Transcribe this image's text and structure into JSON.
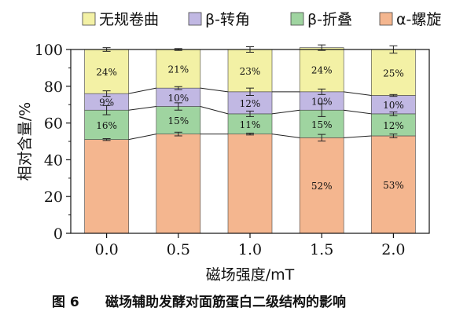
{
  "chart_data": {
    "type": "bar",
    "stacked": true,
    "categories": [
      "0.0",
      "0.5",
      "1.0",
      "1.5",
      "2.0"
    ],
    "series": [
      {
        "name": "α-螺旋",
        "color": "#f4b68f",
        "values": [
          51,
          54,
          54,
          52,
          53
        ],
        "labels": [
          "",
          "",
          "",
          "52%",
          "53%"
        ],
        "error": [
          0.5,
          1,
          0.5,
          1.8,
          1
        ]
      },
      {
        "name": "β-折叠",
        "color": "#9fd4a0",
        "values": [
          16,
          15,
          11,
          15,
          12
        ],
        "labels": [
          "16%",
          "15%",
          "11%",
          "15%",
          "12%"
        ],
        "error": [
          2.5,
          2,
          1.5,
          3.5,
          1
        ]
      },
      {
        "name": "β-转角",
        "color": "#c1b8e3",
        "values": [
          9,
          10,
          12,
          10,
          10
        ],
        "labels": [
          "9%",
          "10%",
          "12%",
          "10%",
          "10%"
        ],
        "error": [
          1.5,
          0.8,
          2,
          1.5,
          0.5
        ]
      },
      {
        "name": "无规卷曲",
        "color": "#f3f1a5",
        "values": [
          24,
          21,
          23,
          24,
          25
        ],
        "labels": [
          "24%",
          "21%",
          "23%",
          "24%",
          "25%"
        ],
        "error": [
          1,
          0.5,
          1.5,
          1.5,
          2
        ]
      }
    ],
    "legend_order": [
      "无规卷曲",
      "β-转角",
      "β-折叠",
      "α-螺旋"
    ],
    "legend_position": "top",
    "xlabel": "磁场强度/mT",
    "ylabel": "相对含量/%",
    "ylim": [
      0,
      100
    ],
    "yticks": [
      0,
      20,
      40,
      60,
      80,
      100
    ],
    "grid": false
  },
  "caption": {
    "figure_number": "图 6",
    "title": "磁场辅助发酵对面筋蛋白二级结构的影响"
  }
}
